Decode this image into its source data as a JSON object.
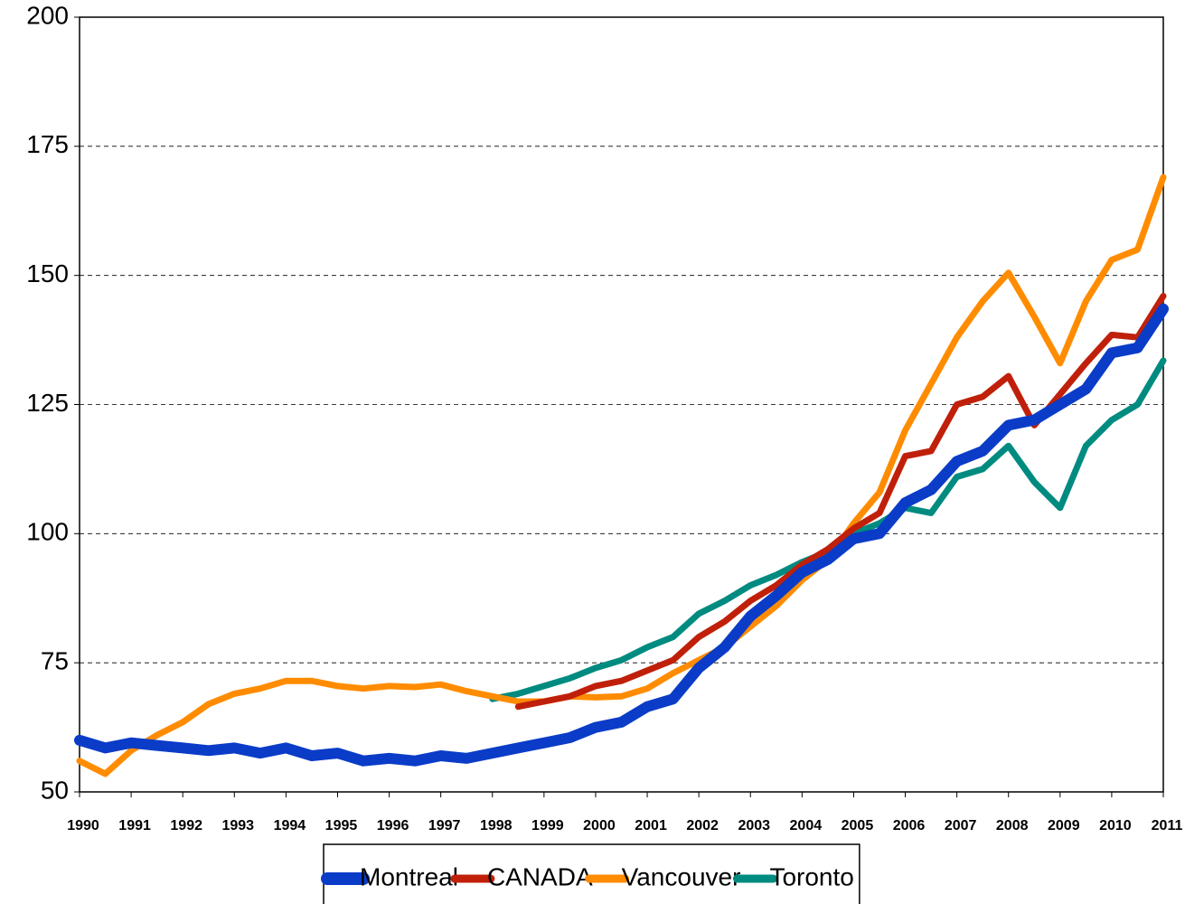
{
  "chart_data": {
    "type": "line",
    "x": [
      1990,
      1990.5,
      1991,
      1991.5,
      1992,
      1992.5,
      1993,
      1993.5,
      1994,
      1994.5,
      1995,
      1995.5,
      1996,
      1996.5,
      1997,
      1997.5,
      1998,
      1998.5,
      1999,
      1999.5,
      2000,
      2000.5,
      2001,
      2001.5,
      2002,
      2002.5,
      2003,
      2003.5,
      2004,
      2004.5,
      2005,
      2005.5,
      2006,
      2006.5,
      2007,
      2007.5,
      2008,
      2008.5,
      2009,
      2009.5,
      2010,
      2010.5,
      2011
    ],
    "xlim": [
      1990,
      2011
    ],
    "xticks": [
      1990,
      1991,
      1992,
      1993,
      1994,
      1995,
      1996,
      1997,
      1998,
      1999,
      2000,
      2001,
      2002,
      2003,
      2004,
      2005,
      2006,
      2007,
      2008,
      2009,
      2010,
      2011
    ],
    "ylim": [
      50,
      200
    ],
    "yticks": [
      50,
      75,
      100,
      125,
      150,
      175,
      200
    ],
    "grid": true,
    "legend": "bottom",
    "series": [
      {
        "name": "Montreal",
        "color": "#0a3cc8",
        "values": [
          60,
          58.5,
          59.5,
          59,
          58.5,
          58,
          58.5,
          57.5,
          58.5,
          57,
          57.5,
          56,
          56.5,
          56,
          57,
          56.5,
          57.5,
          58.5,
          59.5,
          60.5,
          62.5,
          63.5,
          66.5,
          68,
          74,
          78,
          84,
          88,
          92.5,
          95,
          99,
          100,
          106,
          108.5,
          114,
          116,
          121,
          122,
          125,
          128,
          135,
          136,
          143.5
        ]
      },
      {
        "name": "CANADA",
        "color": "#c0200a",
        "values": [
          null,
          null,
          null,
          null,
          null,
          null,
          null,
          null,
          null,
          null,
          null,
          null,
          null,
          null,
          null,
          null,
          null,
          66.5,
          67.5,
          68.5,
          70.5,
          71.5,
          73.5,
          75.5,
          80,
          83,
          87,
          90,
          94,
          97,
          101,
          104,
          115,
          116,
          125,
          126.5,
          130.5,
          121,
          127,
          133,
          138.5,
          138,
          146
        ]
      },
      {
        "name": "Vancouver",
        "color": "#ff8c00",
        "values": [
          56,
          53.5,
          58,
          61,
          63.5,
          67,
          69,
          70,
          71.5,
          71.5,
          70.5,
          70,
          70.5,
          70.3,
          70.8,
          69.5,
          68.5,
          67.5,
          67.5,
          68.5,
          68.3,
          68.5,
          70,
          73,
          75.5,
          78,
          82,
          86,
          91,
          95,
          102,
          108,
          120,
          129,
          138,
          145,
          150.5,
          142,
          133,
          145,
          153,
          155,
          169
        ]
      },
      {
        "name": "Toronto",
        "color": "#008b80",
        "values": [
          null,
          null,
          null,
          null,
          null,
          null,
          null,
          null,
          null,
          null,
          null,
          null,
          null,
          null,
          null,
          null,
          68,
          69,
          70.5,
          72,
          74,
          75.5,
          78,
          80,
          84.5,
          87,
          90,
          92,
          94.5,
          96.5,
          100,
          102,
          105,
          104,
          111,
          112.5,
          117,
          110,
          105,
          117,
          122,
          125,
          133.5
        ]
      }
    ]
  }
}
